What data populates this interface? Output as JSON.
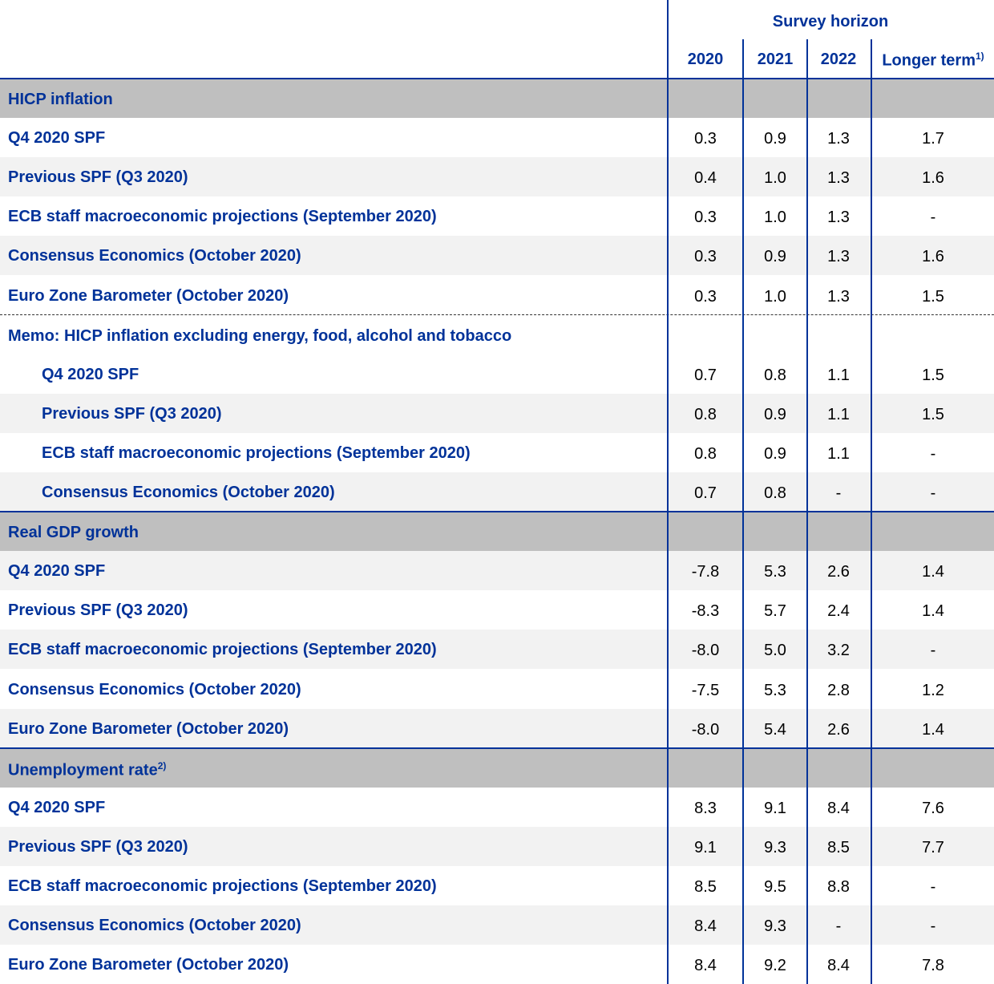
{
  "header": {
    "title": "Survey horizon",
    "columns": [
      "2020",
      "2021",
      "2022",
      "Longer term"
    ],
    "footnote": "1)"
  },
  "sections": [
    {
      "title": "HICP inflation",
      "rows": [
        {
          "label": "Q4 2020 SPF",
          "values": [
            "0.3",
            "0.9",
            "1.3",
            "1.7"
          ]
        },
        {
          "label": "Previous SPF (Q3 2020)",
          "values": [
            "0.4",
            "1.0",
            "1.3",
            "1.6"
          ]
        },
        {
          "label": "ECB staff macroeconomic projections (September 2020)",
          "values": [
            "0.3",
            "1.0",
            "1.3",
            "-"
          ]
        },
        {
          "label": "Consensus Economics (October 2020)",
          "values": [
            "0.3",
            "0.9",
            "1.3",
            "1.6"
          ]
        },
        {
          "label": "Euro Zone Barometer (October 2020)",
          "values": [
            "0.3",
            "1.0",
            "1.3",
            "1.5"
          ]
        }
      ],
      "memo": {
        "title": "Memo: HICP inflation excluding energy, food, alcohol and tobacco",
        "rows": [
          {
            "label": "Q4 2020 SPF",
            "values": [
              "0.7",
              "0.8",
              "1.1",
              "1.5"
            ]
          },
          {
            "label": "Previous SPF (Q3 2020)",
            "values": [
              "0.8",
              "0.9",
              "1.1",
              "1.5"
            ]
          },
          {
            "label": "ECB staff macroeconomic projections (September 2020)",
            "values": [
              "0.8",
              "0.9",
              "1.1",
              "-"
            ]
          },
          {
            "label": "Consensus Economics (October 2020)",
            "values": [
              "0.7",
              "0.8",
              "-",
              "-"
            ]
          }
        ]
      }
    },
    {
      "title": "Real GDP growth",
      "rows": [
        {
          "label": "Q4 2020 SPF",
          "values": [
            "-7.8",
            "5.3",
            "2.6",
            "1.4"
          ]
        },
        {
          "label": "Previous SPF (Q3 2020)",
          "values": [
            "-8.3",
            "5.7",
            "2.4",
            "1.4"
          ]
        },
        {
          "label": "ECB staff macroeconomic projections (September 2020)",
          "values": [
            "-8.0",
            "5.0",
            "3.2",
            "-"
          ]
        },
        {
          "label": "Consensus Economics (October 2020)",
          "values": [
            "-7.5",
            "5.3",
            "2.8",
            "1.2"
          ]
        },
        {
          "label": "Euro Zone Barometer (October 2020)",
          "values": [
            "-8.0",
            "5.4",
            "2.6",
            "1.4"
          ]
        }
      ]
    },
    {
      "title": "Unemployment rate",
      "footnote": "2)",
      "rows": [
        {
          "label": "Q4 2020 SPF",
          "values": [
            "8.3",
            "9.1",
            "8.4",
            "7.6"
          ]
        },
        {
          "label": "Previous SPF (Q3 2020)",
          "values": [
            "9.1",
            "9.3",
            "8.5",
            "7.7"
          ]
        },
        {
          "label": "ECB staff macroeconomic projections (September 2020)",
          "values": [
            "8.5",
            "9.5",
            "8.8",
            "-"
          ]
        },
        {
          "label": "Consensus Economics (October 2020)",
          "values": [
            "8.4",
            "9.3",
            "-",
            "-"
          ]
        },
        {
          "label": "Euro Zone Barometer (October 2020)",
          "values": [
            "8.4",
            "9.2",
            "8.4",
            "7.8"
          ]
        }
      ]
    }
  ]
}
